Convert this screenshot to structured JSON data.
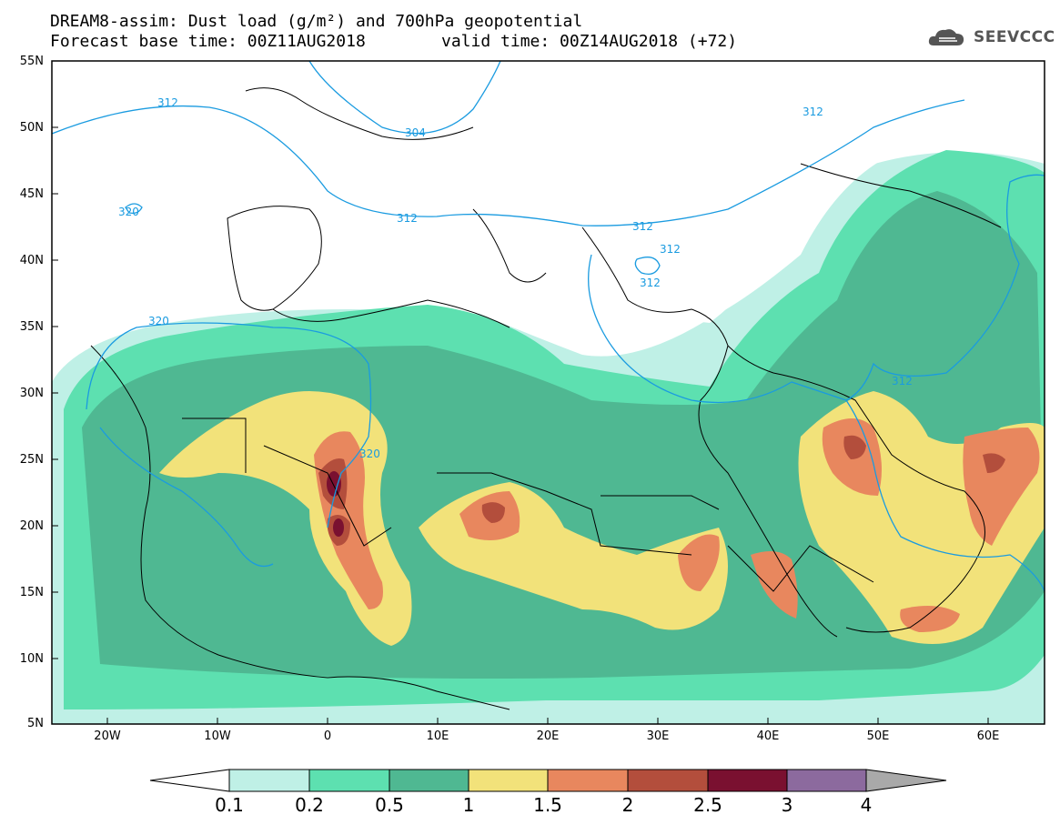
{
  "header": {
    "title": "DREAM8-assim: Dust load (g/m²) and 700hPa geopotential",
    "subtitle_base": "Forecast base time: 00Z11AUG2018",
    "subtitle_valid": "valid time: 00Z14AUG2018 (+72)",
    "logo_text": "SEEVCCC"
  },
  "axes": {
    "lat_labels": [
      "55N",
      "50N",
      "45N",
      "40N",
      "35N",
      "30N",
      "25N",
      "20N",
      "15N",
      "10N",
      "5N"
    ],
    "lon_labels": [
      "20W",
      "10W",
      "0",
      "10E",
      "20E",
      "30E",
      "40E",
      "50E",
      "60E"
    ]
  },
  "contours": {
    "labels": [
      "312",
      "304",
      "312",
      "320",
      "312",
      "312",
      "312",
      "320",
      "312",
      "312",
      "320"
    ]
  },
  "colorbar": {
    "labels": [
      "0.1",
      "0.2",
      "0.5",
      "1",
      "1.5",
      "2",
      "2.5",
      "3",
      "4"
    ],
    "colors": [
      "#ffffff",
      "#bff0e6",
      "#5de0b0",
      "#4fb892",
      "#f2e27a",
      "#e8875e",
      "#b34e3c",
      "#7a1030",
      "#8c6a9e",
      "#a9a9a9"
    ]
  },
  "map_colors": {
    "contour_line": "#1a9be0",
    "boundaries": "#000000"
  }
}
